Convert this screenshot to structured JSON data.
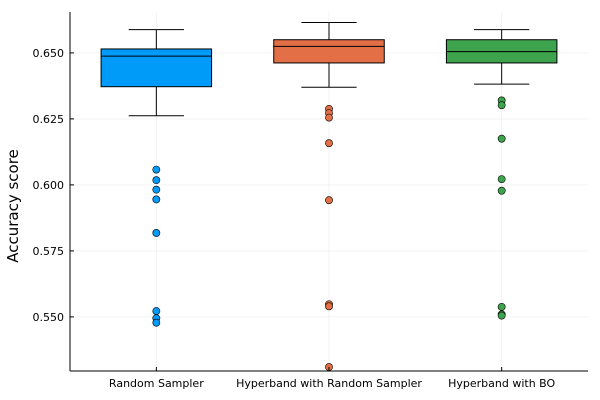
{
  "chart_data": {
    "type": "box",
    "title": "",
    "xlabel": "",
    "ylabel": "Accuracy score",
    "ylim": [
      0.5295,
      0.6655
    ],
    "yticks": [
      0.55,
      0.575,
      0.6,
      0.625,
      0.65
    ],
    "ytick_labels": [
      "0.550",
      "0.575",
      "0.600",
      "0.625",
      "0.650"
    ],
    "grid": true,
    "legend": "none",
    "categories": [
      "Random Sampler",
      "Hyperband with Random Sampler",
      "Hyperband with BO"
    ],
    "series": [
      {
        "color": "#009af9",
        "whisker_low": 0.6262,
        "q1": 0.6372,
        "median": 0.6488,
        "q3": 0.6515,
        "whisker_high": 0.6588,
        "outliers": [
          0.6058,
          0.6018,
          0.5982,
          0.5945,
          0.5818,
          0.5522,
          0.5495,
          0.5478
        ]
      },
      {
        "color": "#e26f46",
        "whisker_low": 0.637,
        "q1": 0.6462,
        "median": 0.6525,
        "q3": 0.655,
        "whisker_high": 0.6615,
        "outliers": [
          0.6288,
          0.6272,
          0.6255,
          0.6158,
          0.5942,
          0.5548,
          0.554,
          0.531
        ]
      },
      {
        "color": "#3da44d",
        "whisker_low": 0.6382,
        "q1": 0.6462,
        "median": 0.6505,
        "q3": 0.655,
        "whisker_high": 0.6588,
        "outliers": [
          0.632,
          0.6302,
          0.6175,
          0.6022,
          0.5978,
          0.5538,
          0.551,
          0.5505
        ]
      }
    ]
  }
}
